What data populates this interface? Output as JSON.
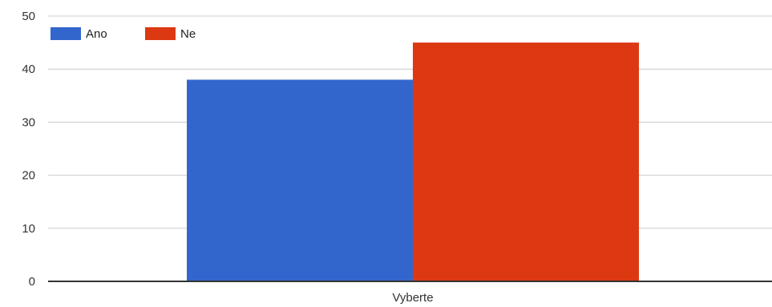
{
  "chart_data": {
    "type": "bar",
    "categories": [
      "Vyberte"
    ],
    "series": [
      {
        "name": "Ano",
        "values": [
          38
        ],
        "color": "#3366CC"
      },
      {
        "name": "Ne",
        "values": [
          45
        ],
        "color": "#DC3912"
      }
    ],
    "title": "",
    "xlabel": "",
    "ylabel": "",
    "ylim": [
      0,
      50
    ],
    "yticks": [
      0,
      10,
      20,
      30,
      40,
      50
    ],
    "grid": true,
    "legend_position": "top-left"
  }
}
